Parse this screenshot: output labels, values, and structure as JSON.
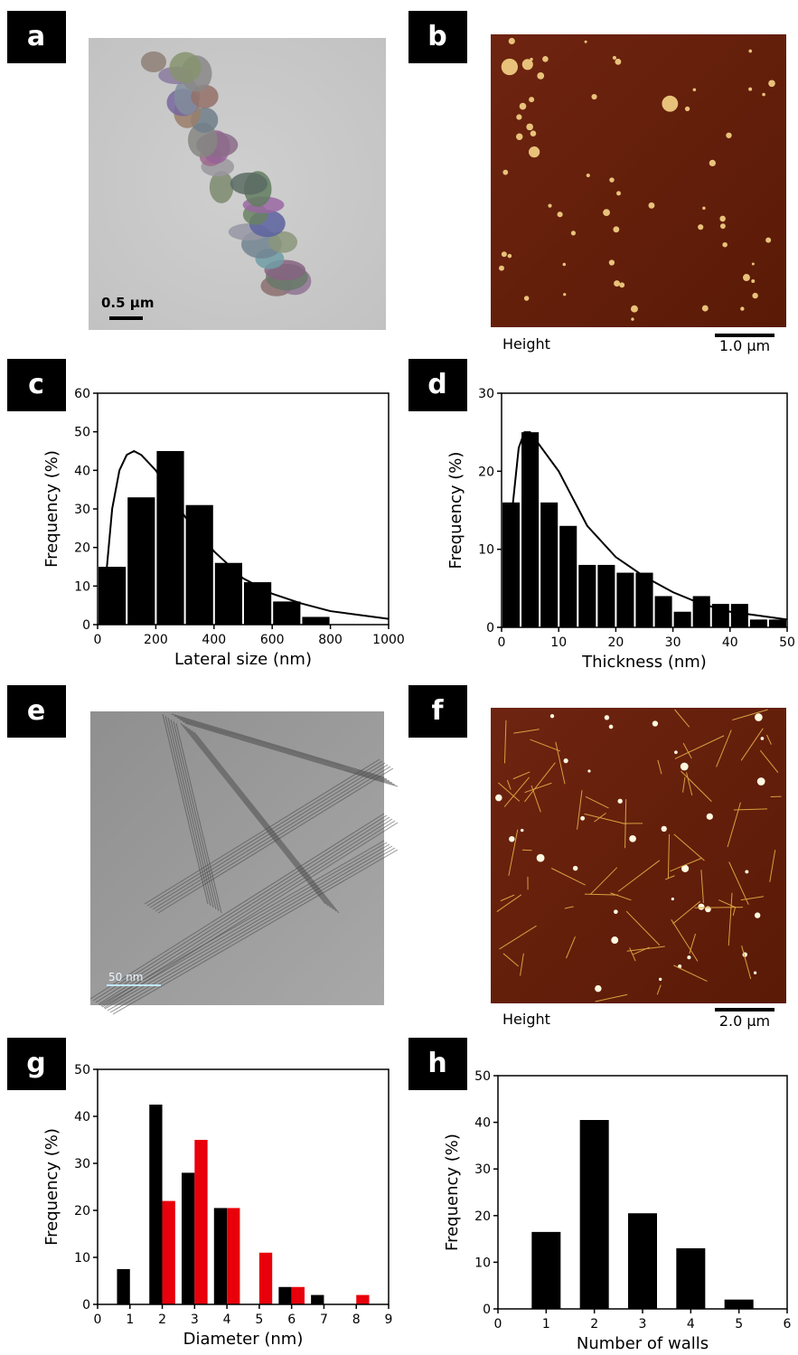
{
  "panel_labels": [
    "a",
    "b",
    "c",
    "d",
    "e",
    "f",
    "g",
    "h"
  ],
  "images": {
    "a": {
      "scale_bar": "0.5 µm"
    },
    "b": {
      "channel": "Height",
      "scale_bar": "1.0 µm"
    },
    "e": {
      "scale_bar": "50 nm"
    },
    "f": {
      "channel": "Height",
      "scale_bar": "2.0 µm"
    }
  },
  "chart_data": [
    {
      "type": "histogram",
      "xlabel": "Lateral size (nm)",
      "ylabel": "Frequency (%)",
      "bins": [
        0,
        100,
        200,
        300,
        400,
        500,
        600,
        700,
        800
      ],
      "values": [
        15,
        33,
        45,
        31,
        16,
        11,
        6,
        2
      ],
      "color": "#000000",
      "fit": {
        "x": [
          20,
          50,
          75,
          100,
          125,
          150,
          200,
          250,
          300,
          400,
          500,
          600,
          700,
          800,
          900,
          1000
        ],
        "values": [
          5,
          30,
          40,
          44,
          45,
          44,
          40,
          34,
          28,
          19,
          12,
          8,
          5.5,
          3.5,
          2.5,
          1.5
        ]
      },
      "xlim": [
        0,
        1000
      ],
      "ylim": [
        0,
        60
      ],
      "xticks": [
        0,
        200,
        400,
        600,
        800,
        1000
      ],
      "yticks": [
        0,
        10,
        20,
        30,
        40,
        50,
        60
      ]
    },
    {
      "type": "histogram",
      "xlabel": "Thickness (nm)",
      "ylabel": "Frequency (%)",
      "bins": [
        0,
        3.33,
        6.67,
        10,
        13.33,
        16.67,
        20,
        23.33,
        26.67,
        30,
        33.33,
        36.67,
        40,
        43.33,
        46.67,
        50
      ],
      "values": [
        16,
        25,
        16,
        13,
        8,
        8,
        7,
        7,
        4,
        2,
        4,
        3,
        3,
        1,
        1
      ],
      "color": "#000000",
      "fit": {
        "x": [
          1.5,
          2,
          3,
          4,
          5,
          7,
          10,
          15,
          20,
          25,
          30,
          35,
          40,
          45,
          50
        ],
        "values": [
          5,
          16,
          23,
          25,
          25,
          23,
          20,
          13,
          9,
          6.5,
          4.5,
          3,
          2,
          1.5,
          1
        ]
      },
      "xlim": [
        0,
        50
      ],
      "ylim": [
        0,
        30
      ],
      "xticks": [
        0,
        10,
        20,
        30,
        40,
        50
      ],
      "yticks": [
        0,
        10,
        20,
        30
      ]
    },
    {
      "type": "grouped-bar",
      "xlabel": "Diameter (nm)",
      "ylabel": "Frequency (%)",
      "x": [
        1,
        2,
        3,
        4,
        5,
        6,
        7,
        8
      ],
      "series": [
        {
          "color": "#000000",
          "values": [
            7.5,
            42.5,
            28,
            20.5,
            0,
            3.7,
            2,
            0
          ]
        },
        {
          "color": "#e8000b",
          "values": [
            0,
            22,
            35,
            20.5,
            11,
            3.7,
            0,
            2
          ]
        }
      ],
      "xlim": [
        0,
        9
      ],
      "ylim": [
        0,
        50
      ],
      "xticks": [
        0,
        1,
        2,
        3,
        4,
        5,
        6,
        7,
        8,
        9
      ],
      "yticks": [
        0,
        10,
        20,
        30,
        40,
        50
      ]
    },
    {
      "type": "bar",
      "xlabel": "Number of walls",
      "ylabel": "Frequency (%)",
      "x": [
        1,
        2,
        3,
        4,
        5
      ],
      "values": [
        16.5,
        40.5,
        20.5,
        13,
        2
      ],
      "color": "#000000",
      "xlim": [
        0,
        6
      ],
      "ylim": [
        0,
        50
      ],
      "xticks": [
        0,
        1,
        2,
        3,
        4,
        5,
        6
      ],
      "yticks": [
        0,
        10,
        20,
        30,
        40,
        50
      ]
    }
  ]
}
